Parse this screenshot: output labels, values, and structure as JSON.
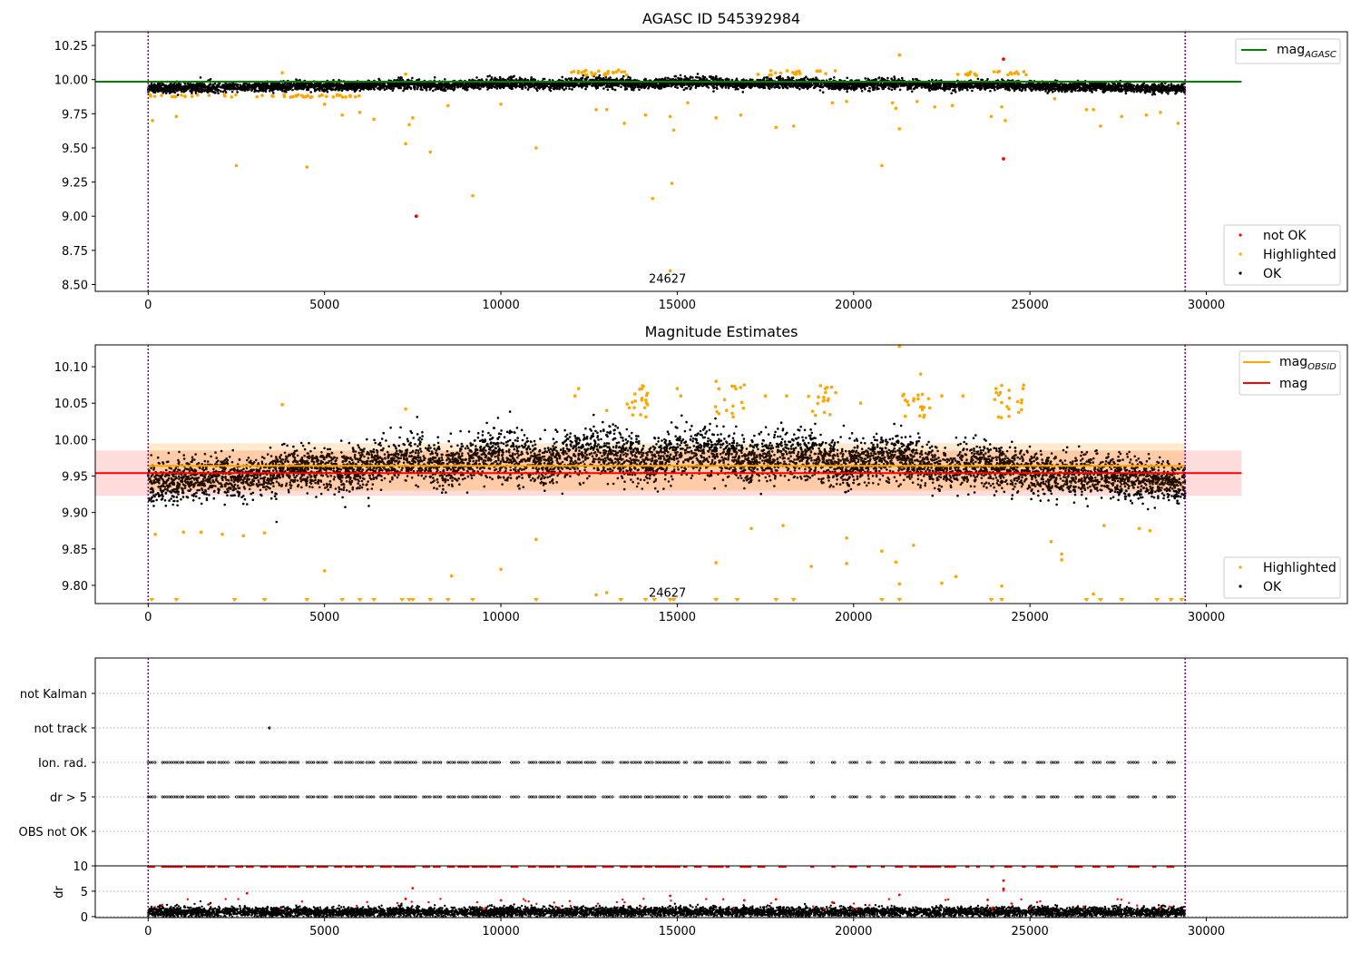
{
  "colors": {
    "ok": "#000000",
    "highlighted": "#ffa500",
    "not_ok": "#ff0000",
    "mag_agasc": "#008000",
    "mag_obsid": "#ffa500",
    "mag": "#ff0000",
    "boundary": "#800080",
    "band": "#ffc0c0",
    "grid": "#b0b0b0"
  },
  "chart_data": [
    {
      "type": "scatter",
      "title": "AGASC ID 545392984",
      "xlabel": "",
      "ylabel": "",
      "xlim": [
        -1500,
        34000
      ],
      "ylim": [
        8.45,
        10.35
      ],
      "xticks": [
        0,
        5000,
        10000,
        15000,
        20000,
        25000,
        30000
      ],
      "yticks": [
        8.5,
        8.75,
        9.0,
        9.25,
        9.5,
        9.75,
        10.0,
        10.25
      ],
      "ytick_labels": [
        "8.50",
        "8.75",
        "9.00",
        "9.25",
        "9.50",
        "9.75",
        "10.00",
        "10.25"
      ],
      "x_range_points": [
        0,
        29400
      ],
      "obs_boundaries": [
        0,
        29400
      ],
      "annotations": [
        {
          "text": "24627",
          "x": 14800,
          "y": 8.5
        }
      ],
      "legend_lines": [
        {
          "name": "mag",
          "subscript": "AGASC",
          "color": "#008000"
        }
      ],
      "legend_markers": [
        "not OK",
        "Highlighted",
        "OK"
      ],
      "lines": [
        {
          "name": "mag_AGASC",
          "y": 9.985,
          "x": [
            -1500,
            31000
          ]
        }
      ],
      "series": [
        {
          "name": "OK",
          "band": {
            "base": 9.935,
            "spread": 0.03,
            "seasonal": 0.045
          }
        },
        {
          "name": "Highlighted",
          "points": [
            [
              120,
              9.7
            ],
            [
              800,
              9.73
            ],
            [
              2500,
              9.37
            ],
            [
              3800,
              10.05
            ],
            [
              4500,
              9.36
            ],
            [
              5000,
              9.82
            ],
            [
              5500,
              9.74
            ],
            [
              6000,
              9.76
            ],
            [
              6400,
              9.71
            ],
            [
              7300,
              9.53
            ],
            [
              7400,
              9.67
            ],
            [
              7500,
              9.72
            ],
            [
              7300,
              10.04
            ],
            [
              8000,
              9.47
            ],
            [
              8500,
              9.81
            ],
            [
              9200,
              9.15
            ],
            [
              10000,
              9.82
            ],
            [
              11000,
              9.5
            ],
            [
              12200,
              10.06
            ],
            [
              12700,
              9.78
            ],
            [
              13000,
              9.78
            ],
            [
              13500,
              9.68
            ],
            [
              14100,
              9.74
            ],
            [
              14300,
              9.13
            ],
            [
              14800,
              9.73
            ],
            [
              14850,
              9.24
            ],
            [
              14800,
              8.6
            ],
            [
              14900,
              9.63
            ],
            [
              15300,
              9.83
            ],
            [
              16100,
              9.72
            ],
            [
              16800,
              9.74
            ],
            [
              17800,
              9.65
            ],
            [
              18300,
              9.66
            ],
            [
              19400,
              9.83
            ],
            [
              19800,
              9.84
            ],
            [
              20800,
              9.37
            ],
            [
              21100,
              9.83
            ],
            [
              21200,
              9.79
            ],
            [
              21300,
              10.18
            ],
            [
              21300,
              9.64
            ],
            [
              21800,
              9.84
            ],
            [
              22300,
              9.8
            ],
            [
              22800,
              9.81
            ],
            [
              23900,
              9.73
            ],
            [
              24200,
              9.8
            ],
            [
              24300,
              9.7
            ],
            [
              25700,
              9.86
            ],
            [
              26600,
              9.78
            ],
            [
              26800,
              9.78
            ],
            [
              27000,
              9.66
            ],
            [
              27600,
              9.73
            ],
            [
              28300,
              9.74
            ],
            [
              28700,
              9.76
            ],
            [
              29200,
              9.68
            ]
          ]
        },
        {
          "name": "not OK",
          "points": [
            [
              7600,
              9.0
            ],
            [
              24250,
              10.15
            ],
            [
              24250,
              9.42
            ]
          ]
        }
      ]
    },
    {
      "type": "scatter",
      "title": "Magnitude Estimates",
      "xlabel": "",
      "ylabel": "",
      "xlim": [
        -1500,
        34000
      ],
      "ylim": [
        9.775,
        10.13
      ],
      "xticks": [
        0,
        5000,
        10000,
        15000,
        20000,
        25000,
        30000
      ],
      "yticks": [
        9.8,
        9.85,
        9.9,
        9.95,
        10.0,
        10.05,
        10.1
      ],
      "ytick_labels": [
        "9.80",
        "9.85",
        "9.90",
        "9.95",
        "10.00",
        "10.05",
        "10.10"
      ],
      "x_range_points": [
        0,
        29400
      ],
      "obs_boundaries": [
        0,
        29400
      ],
      "annotations": [
        {
          "text": "24627",
          "x": 14800,
          "y": 9.782
        }
      ],
      "legend_lines": [
        {
          "name": "mag",
          "subscript": "OBSID",
          "color": "#ffa500"
        },
        {
          "name": "mag",
          "subscript": "",
          "color": "#ff0000"
        }
      ],
      "legend_markers": [
        "Highlighted",
        "OK"
      ],
      "lines": [
        {
          "name": "mag_OBSID",
          "y": 9.964,
          "x": [
            0,
            29400
          ]
        },
        {
          "name": "mag",
          "y": 9.954,
          "x": [
            -1500,
            31000
          ]
        }
      ],
      "bands": [
        {
          "y0": 9.923,
          "y1": 9.985,
          "x": [
            -1500,
            31000
          ]
        },
        {
          "y0": 9.93,
          "y1": 9.995,
          "x": [
            0,
            29400
          ]
        }
      ],
      "series": [
        {
          "name": "OK",
          "band": {
            "base": 9.94,
            "spread": 0.025,
            "seasonal": 0.045
          }
        },
        {
          "name": "Highlighted",
          "points": [
            [
              3800,
              10.048
            ],
            [
              7300,
              10.042
            ],
            [
              12200,
              10.07
            ],
            [
              12100,
              10.06
            ],
            [
              13000,
              10.04
            ],
            [
              15000,
              10.07
            ],
            [
              15100,
              10.06
            ],
            [
              16100,
              10.08
            ],
            [
              16900,
              10.075
            ],
            [
              17500,
              10.06
            ],
            [
              18100,
              10.06
            ],
            [
              19200,
              10.07
            ],
            [
              20200,
              10.05
            ],
            [
              21300,
              10.128
            ],
            [
              21900,
              10.09
            ],
            [
              22500,
              10.06
            ],
            [
              23100,
              10.06
            ],
            [
              24000,
              10.055
            ],
            [
              24800,
              10.07
            ],
            [
              5000,
              9.82
            ],
            [
              8600,
              9.813
            ],
            [
              10000,
              9.822
            ],
            [
              11000,
              9.863
            ],
            [
              12700,
              9.787
            ],
            [
              13000,
              9.79
            ],
            [
              16100,
              9.831
            ],
            [
              17100,
              9.878
            ],
            [
              18000,
              9.882
            ],
            [
              18800,
              9.826
            ],
            [
              19800,
              9.865
            ],
            [
              19800,
              9.83
            ],
            [
              20800,
              9.847
            ],
            [
              21200,
              9.832
            ],
            [
              21300,
              9.802
            ],
            [
              21700,
              9.855
            ],
            [
              22500,
              9.803
            ],
            [
              22900,
              9.812
            ],
            [
              24200,
              9.799
            ],
            [
              25600,
              9.86
            ],
            [
              25900,
              9.843
            ],
            [
              25900,
              9.835
            ],
            [
              26800,
              9.788
            ],
            [
              27100,
              9.882
            ],
            [
              28100,
              9.878
            ],
            [
              28400,
              9.875
            ],
            [
              1000,
              9.873
            ],
            [
              1500,
              9.873
            ],
            [
              2100,
              9.87
            ],
            [
              2700,
              9.868
            ],
            [
              3300,
              9.872
            ],
            [
              200,
              9.87
            ]
          ]
        },
        {
          "name": "Highlighted-below",
          "points": [
            [
              100,
              9.777
            ],
            [
              800,
              9.777
            ],
            [
              2450,
              9.777
            ],
            [
              3300,
              9.777
            ],
            [
              4500,
              9.777
            ],
            [
              5500,
              9.777
            ],
            [
              6000,
              9.777
            ],
            [
              6400,
              9.777
            ],
            [
              7200,
              9.777
            ],
            [
              7400,
              9.777
            ],
            [
              7500,
              9.777
            ],
            [
              8000,
              9.777
            ],
            [
              8500,
              9.777
            ],
            [
              9200,
              9.777
            ],
            [
              11000,
              9.777
            ],
            [
              13400,
              9.777
            ],
            [
              14100,
              9.777
            ],
            [
              14350,
              9.777
            ],
            [
              14800,
              9.777
            ],
            [
              14900,
              9.777
            ],
            [
              16100,
              9.777
            ],
            [
              16700,
              9.777
            ],
            [
              17800,
              9.777
            ],
            [
              18300,
              9.777
            ],
            [
              20800,
              9.777
            ],
            [
              21300,
              9.777
            ],
            [
              23900,
              9.777
            ],
            [
              24200,
              9.777
            ],
            [
              26600,
              9.777
            ],
            [
              27000,
              9.777
            ],
            [
              27600,
              9.777
            ],
            [
              28600,
              9.777
            ],
            [
              29000,
              9.777
            ],
            [
              29300,
              9.777
            ]
          ]
        }
      ]
    },
    {
      "type": "scatter",
      "title": "",
      "xlabel": "",
      "ylabel": "",
      "categories": [
        "not Kalman",
        "not track",
        "Ion. rad.",
        "dr > 5",
        "OBS not OK"
      ],
      "xlim": [
        -1500,
        34000
      ],
      "obs_boundaries": [
        0,
        29400
      ],
      "flags": {
        "not track": [
          3440
        ],
        "Ion. rad.": "intervals",
        "dr > 5": "intervals"
      },
      "flag_intervals": [
        [
          0,
          200
        ],
        [
          400,
          1000
        ],
        [
          1100,
          1600
        ],
        [
          1700,
          1900
        ],
        [
          2000,
          2300
        ],
        [
          2500,
          2700
        ],
        [
          2800,
          3000
        ],
        [
          3200,
          3400
        ],
        [
          3500,
          3900
        ],
        [
          4000,
          4300
        ],
        [
          4500,
          4700
        ],
        [
          4800,
          5100
        ],
        [
          5300,
          5500
        ],
        [
          5600,
          5800
        ],
        [
          5900,
          6100
        ],
        [
          6200,
          6400
        ],
        [
          6600,
          6900
        ],
        [
          7000,
          7600
        ],
        [
          7800,
          8000
        ],
        [
          8100,
          8300
        ],
        [
          8500,
          8700
        ],
        [
          8800,
          9100
        ],
        [
          9200,
          9600
        ],
        [
          9700,
          10000
        ],
        [
          10300,
          10500
        ],
        [
          10800,
          11000
        ],
        [
          11100,
          11500
        ],
        [
          11600,
          11700
        ],
        [
          11900,
          12300
        ],
        [
          12400,
          12700
        ],
        [
          12900,
          13200
        ],
        [
          13400,
          13600
        ],
        [
          13700,
          14000
        ],
        [
          14100,
          14300
        ],
        [
          14400,
          15100
        ],
        [
          15200,
          15300
        ],
        [
          15500,
          15700
        ],
        [
          15900,
          16300
        ],
        [
          16400,
          16500
        ],
        [
          16800,
          17100
        ],
        [
          17300,
          17500
        ],
        [
          17900,
          18100
        ],
        [
          18800,
          18900
        ],
        [
          19400,
          19500
        ],
        [
          19900,
          20100
        ],
        [
          20400,
          20500
        ],
        [
          20800,
          20900
        ],
        [
          21200,
          21400
        ],
        [
          21600,
          21800
        ],
        [
          21900,
          22500
        ],
        [
          22600,
          22900
        ],
        [
          23200,
          23300
        ],
        [
          23500,
          23600
        ],
        [
          23900,
          24000
        ],
        [
          24300,
          24500
        ],
        [
          24800,
          24900
        ],
        [
          25200,
          25400
        ],
        [
          25600,
          25800
        ],
        [
          26300,
          26500
        ],
        [
          26800,
          27000
        ],
        [
          27200,
          27400
        ],
        [
          27800,
          28100
        ],
        [
          28500,
          28600
        ],
        [
          28900,
          29100
        ]
      ]
    },
    {
      "type": "scatter",
      "title": "",
      "xlabel": "",
      "ylabel": "dr",
      "xlim": [
        -1500,
        34000
      ],
      "ylim": [
        -0.2,
        10
      ],
      "xticks": [
        0,
        5000,
        10000,
        15000,
        20000,
        25000,
        30000
      ],
      "yticks": [
        0,
        5,
        10
      ],
      "x_range_points": [
        0,
        29400
      ],
      "obs_boundaries": [
        0,
        29400
      ],
      "series": [
        {
          "name": "OK",
          "band": {
            "base": 0.9,
            "spread": 0.9
          }
        },
        {
          "name": "not OK clipped",
          "y": 9.8
        },
        {
          "name": "not OK",
          "points": [
            [
              2800,
              4.6
            ],
            [
              7500,
              5.6
            ],
            [
              7300,
              3.5
            ],
            [
              10000,
              3.2
            ],
            [
              14800,
              4.1
            ],
            [
              16900,
              3.2
            ],
            [
              17800,
              3.4
            ],
            [
              19400,
              2.8
            ],
            [
              21300,
              4.3
            ],
            [
              23800,
              3.3
            ],
            [
              24250,
              7.1
            ],
            [
              24250,
              5.5
            ],
            [
              24250,
              5.1
            ]
          ]
        }
      ]
    }
  ]
}
